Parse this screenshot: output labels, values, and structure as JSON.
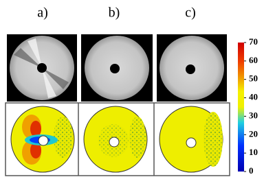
{
  "panels": [
    {
      "label": "a)"
    },
    {
      "label": "b)"
    },
    {
      "label": "c)"
    }
  ],
  "colorbar": {
    "range": [
      0,
      70
    ],
    "ticks": [
      0,
      10,
      20,
      30,
      40,
      50,
      60,
      70
    ]
  }
}
